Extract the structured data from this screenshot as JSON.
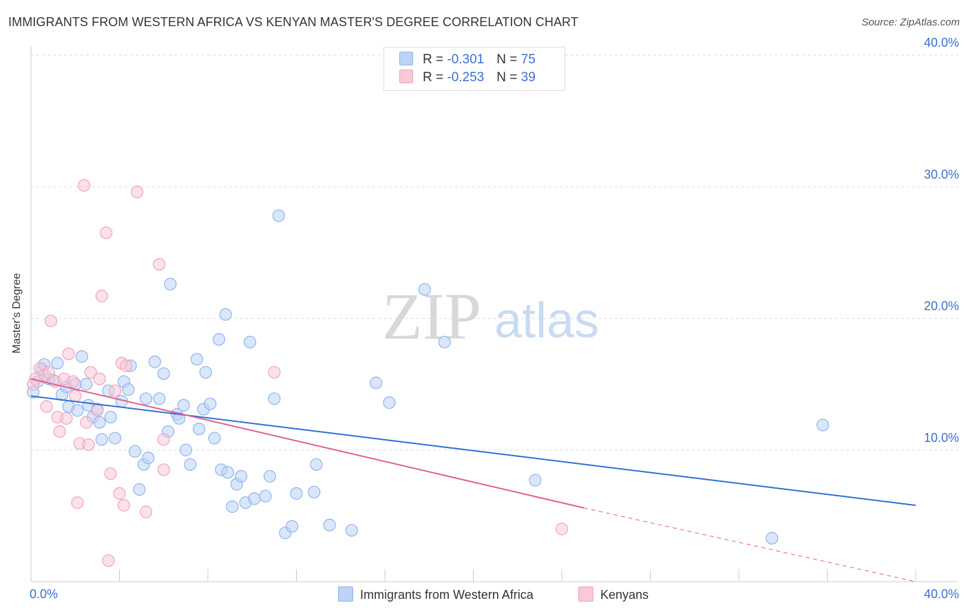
{
  "title": "IMMIGRANTS FROM WESTERN AFRICA VS KENYAN MASTER'S DEGREE CORRELATION CHART",
  "source": "Source: ZipAtlas.com",
  "watermark": {
    "zip": "ZIP",
    "atlas": "atlas"
  },
  "legend": {
    "series1": {
      "r_label": "R = ",
      "r_value": "-0.301",
      "n_label": "N = ",
      "n_value": "75"
    },
    "series2": {
      "r_label": "R = ",
      "r_value": "-0.253",
      "n_label": "N = ",
      "n_value": "39"
    }
  },
  "chart_data": {
    "type": "scatter",
    "title": "IMMIGRANTS FROM WESTERN AFRICA VS KENYAN MASTER'S DEGREE CORRELATION CHART",
    "xlabel": "",
    "ylabel": "Master's Degree",
    "xlim": [
      0,
      40
    ],
    "ylim": [
      0,
      40
    ],
    "x_tick_labels": [
      "0.0%",
      "40.0%"
    ],
    "y_tick_labels": [
      "10.0%",
      "20.0%",
      "30.0%",
      "40.0%"
    ],
    "y_ticks": [
      10,
      20,
      30,
      40
    ],
    "grid": true,
    "series": [
      {
        "name": "Immigrants from Western Africa",
        "color": "#8fb4ec",
        "fill": "#bcd3f5",
        "line_color": "#2f6fd6",
        "trend": {
          "x0": 0,
          "y0": 14.1,
          "x1": 40,
          "y1": 5.8
        },
        "points": [
          [
            0.1,
            14.4
          ],
          [
            0.3,
            15.2
          ],
          [
            0.5,
            16.1
          ],
          [
            0.6,
            16.5
          ],
          [
            0.8,
            15.4
          ],
          [
            1.0,
            15.3
          ],
          [
            1.2,
            16.6
          ],
          [
            1.4,
            14.2
          ],
          [
            1.6,
            14.8
          ],
          [
            1.7,
            13.3
          ],
          [
            2.0,
            15.0
          ],
          [
            2.1,
            13.0
          ],
          [
            2.3,
            17.1
          ],
          [
            2.5,
            15.0
          ],
          [
            2.6,
            13.4
          ],
          [
            2.8,
            12.5
          ],
          [
            3.0,
            13.1
          ],
          [
            3.1,
            12.1
          ],
          [
            3.2,
            10.8
          ],
          [
            3.5,
            14.5
          ],
          [
            3.6,
            12.5
          ],
          [
            3.8,
            10.9
          ],
          [
            4.1,
            13.7
          ],
          [
            4.2,
            15.2
          ],
          [
            4.4,
            14.6
          ],
          [
            4.5,
            16.4
          ],
          [
            4.7,
            9.9
          ],
          [
            4.9,
            7.0
          ],
          [
            5.1,
            8.9
          ],
          [
            5.2,
            13.9
          ],
          [
            5.3,
            9.4
          ],
          [
            5.6,
            16.7
          ],
          [
            5.8,
            13.9
          ],
          [
            6.0,
            15.8
          ],
          [
            6.2,
            11.4
          ],
          [
            6.3,
            22.6
          ],
          [
            6.6,
            12.7
          ],
          [
            6.7,
            12.4
          ],
          [
            6.9,
            13.4
          ],
          [
            7.0,
            10.0
          ],
          [
            7.2,
            8.9
          ],
          [
            7.5,
            16.9
          ],
          [
            7.6,
            11.6
          ],
          [
            7.8,
            13.1
          ],
          [
            7.9,
            15.9
          ],
          [
            8.1,
            13.5
          ],
          [
            8.3,
            10.9
          ],
          [
            8.5,
            18.4
          ],
          [
            8.6,
            8.5
          ],
          [
            8.8,
            20.3
          ],
          [
            8.9,
            8.3
          ],
          [
            9.1,
            5.7
          ],
          [
            9.3,
            7.4
          ],
          [
            9.5,
            8.0
          ],
          [
            9.7,
            6.0
          ],
          [
            9.9,
            18.2
          ],
          [
            10.1,
            6.3
          ],
          [
            10.6,
            6.5
          ],
          [
            10.8,
            8.0
          ],
          [
            11.0,
            13.9
          ],
          [
            11.2,
            27.8
          ],
          [
            11.5,
            3.7
          ],
          [
            11.8,
            4.2
          ],
          [
            12.0,
            6.7
          ],
          [
            12.8,
            6.8
          ],
          [
            12.9,
            8.9
          ],
          [
            13.5,
            4.3
          ],
          [
            14.5,
            3.9
          ],
          [
            15.6,
            15.1
          ],
          [
            16.2,
            13.6
          ],
          [
            17.8,
            22.2
          ],
          [
            18.7,
            18.2
          ],
          [
            22.8,
            7.7
          ],
          [
            33.5,
            3.3
          ],
          [
            35.8,
            11.9
          ]
        ]
      },
      {
        "name": "Kenyans",
        "color": "#f0a3bd",
        "fill": "#f8c9d8",
        "line_color": "#e0608e",
        "trend": {
          "x0": 0,
          "y0": 15.4,
          "x1": 25.0,
          "y1": 5.6
        },
        "trend_dashed": {
          "x0": 25.0,
          "y0": 5.6,
          "x1": 40,
          "y1": 0.0
        },
        "points": [
          [
            0.2,
            15.4
          ],
          [
            0.4,
            16.2
          ],
          [
            0.6,
            15.7
          ],
          [
            0.7,
            13.3
          ],
          [
            0.8,
            15.9
          ],
          [
            0.9,
            19.8
          ],
          [
            1.1,
            15.2
          ],
          [
            1.2,
            12.5
          ],
          [
            1.3,
            11.4
          ],
          [
            1.5,
            15.4
          ],
          [
            1.6,
            12.4
          ],
          [
            1.7,
            17.3
          ],
          [
            1.9,
            15.2
          ],
          [
            2.0,
            14.1
          ],
          [
            2.1,
            6.0
          ],
          [
            2.2,
            10.5
          ],
          [
            2.4,
            30.1
          ],
          [
            2.5,
            12.1
          ],
          [
            2.6,
            10.4
          ],
          [
            2.7,
            15.9
          ],
          [
            3.0,
            13.0
          ],
          [
            3.1,
            15.4
          ],
          [
            3.2,
            21.7
          ],
          [
            3.4,
            26.5
          ],
          [
            3.5,
            1.6
          ],
          [
            3.6,
            8.2
          ],
          [
            3.8,
            14.5
          ],
          [
            4.0,
            6.7
          ],
          [
            4.1,
            16.6
          ],
          [
            4.2,
            5.8
          ],
          [
            4.3,
            16.4
          ],
          [
            4.8,
            29.6
          ],
          [
            5.2,
            5.3
          ],
          [
            5.8,
            24.1
          ],
          [
            6.0,
            10.8
          ],
          [
            6.0,
            8.5
          ],
          [
            11.0,
            15.9
          ],
          [
            24.0,
            4.0
          ],
          [
            0.1,
            15.0
          ]
        ]
      }
    ]
  },
  "bottom_legend": {
    "series1_label": "Immigrants from Western Africa",
    "series2_label": "Kenyans"
  }
}
